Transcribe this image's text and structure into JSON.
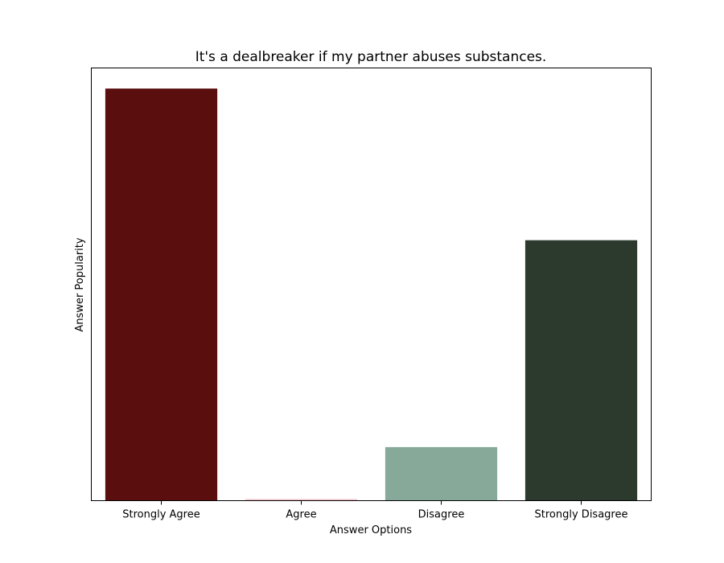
{
  "chart_data": {
    "type": "bar",
    "title": "It's a dealbreaker if my partner abuses substances.",
    "xlabel": "Answer Options",
    "ylabel": "Answer Popularity",
    "categories": [
      "Strongly Agree",
      "Agree",
      "Disagree",
      "Strongly Disagree"
    ],
    "values": [
      100,
      0.4,
      13,
      63.2
    ],
    "colors": [
      "#5a0e0e",
      "#f2c4cf",
      "#86a99a",
      "#2c3a2e"
    ],
    "ylim": [
      0,
      105
    ],
    "y_ticks_shown": false,
    "grid": false,
    "legend": "none"
  }
}
